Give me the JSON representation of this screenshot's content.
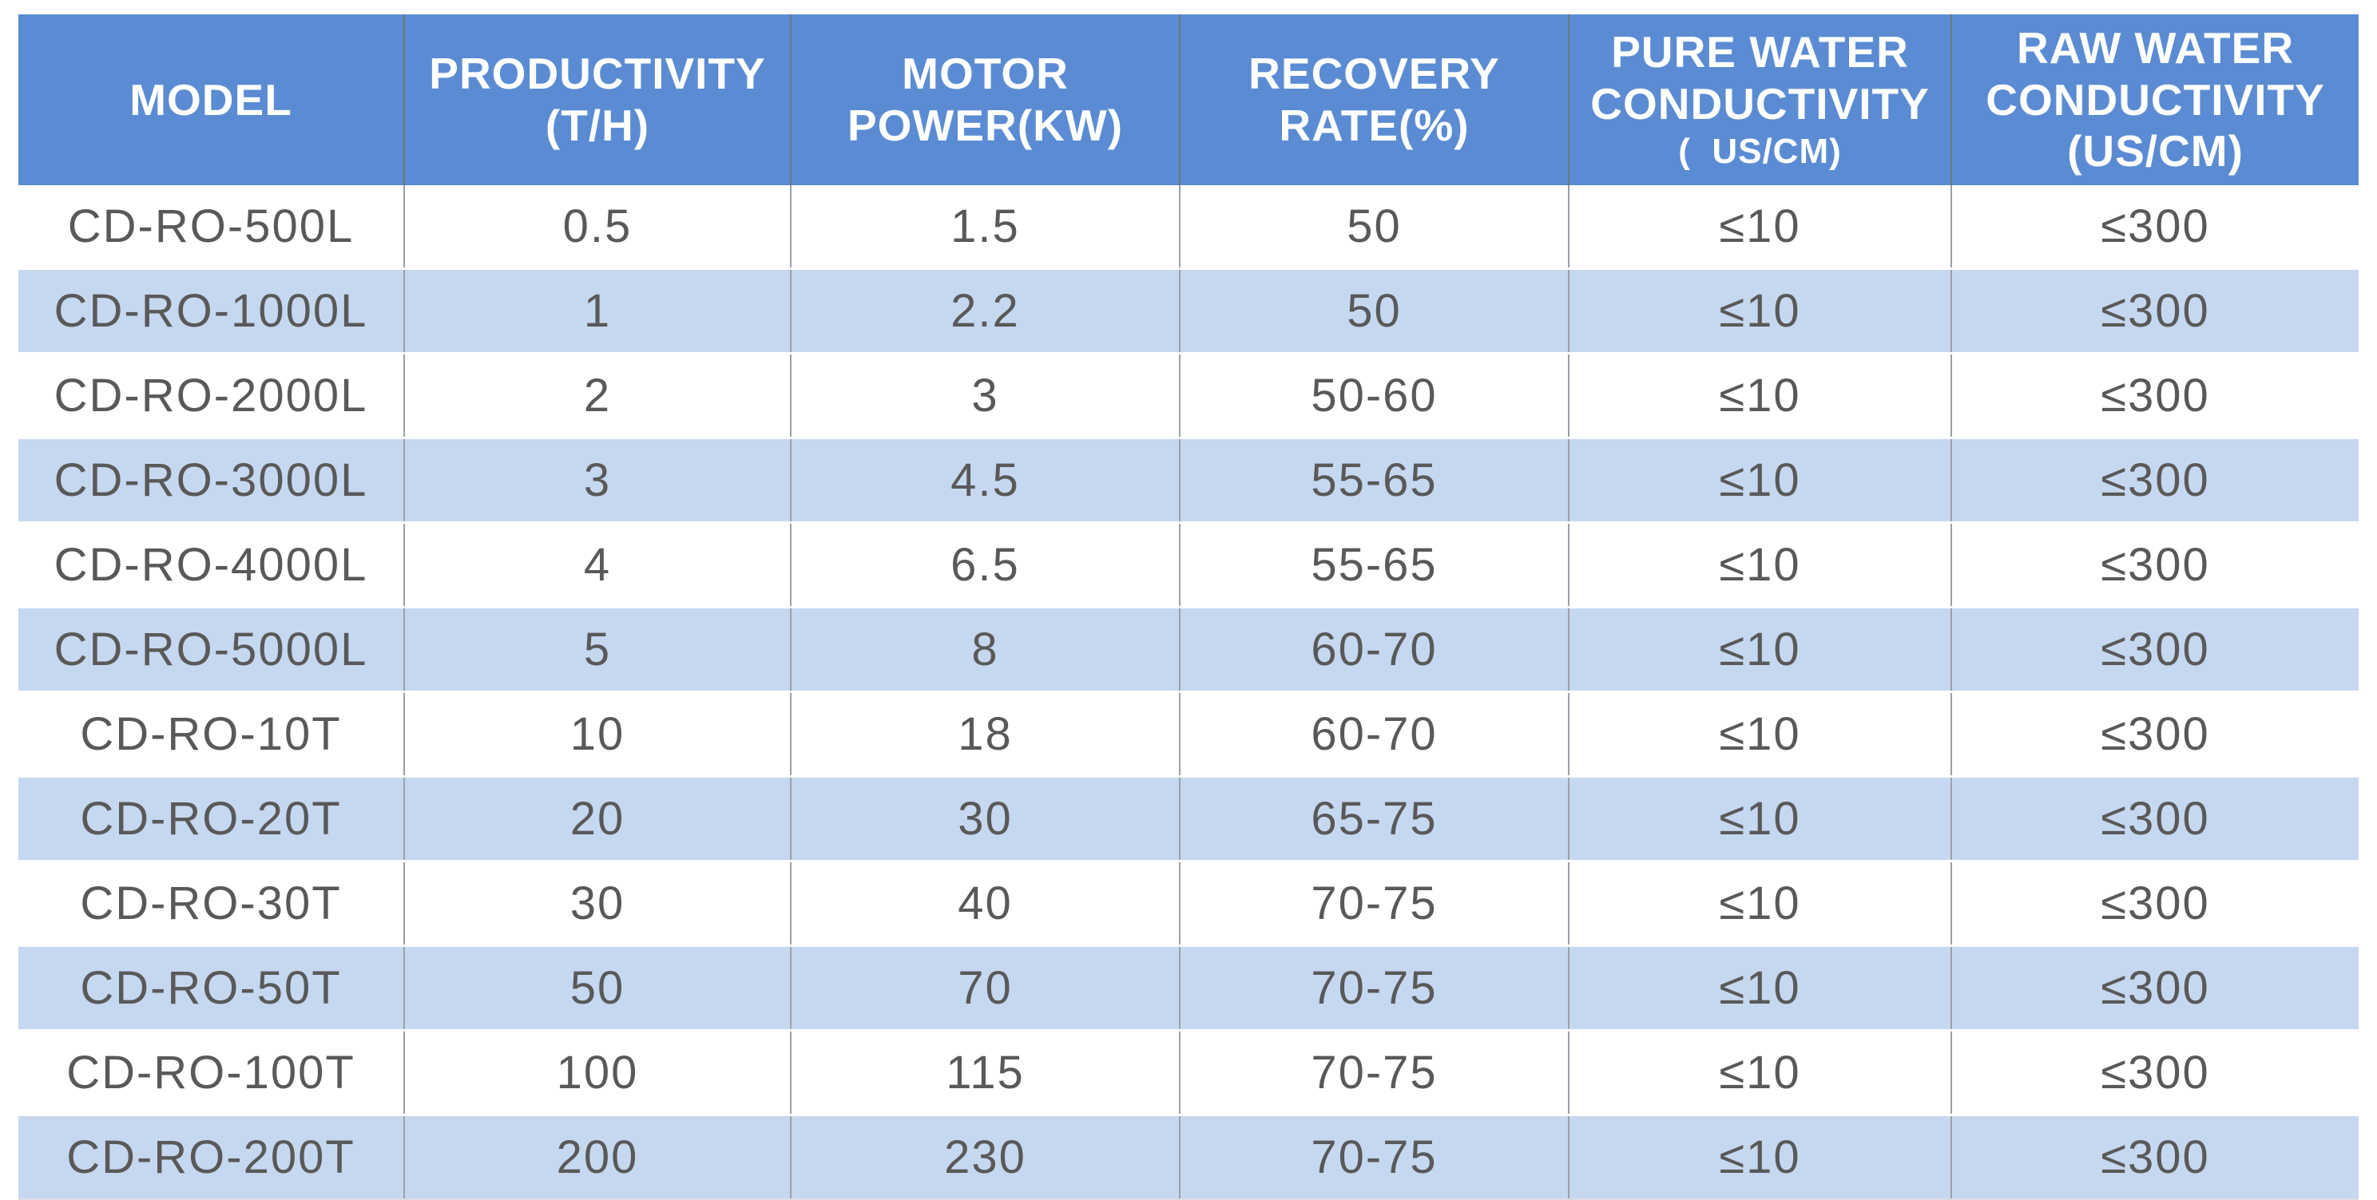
{
  "table": {
    "columns": [
      {
        "id": "model",
        "lines": [
          "MODEL"
        ]
      },
      {
        "id": "productivity",
        "lines": [
          "PRODUCTIVITY",
          "(T/H)"
        ]
      },
      {
        "id": "motor-power",
        "lines": [
          "MOTOR",
          "POWER(KW)"
        ]
      },
      {
        "id": "recovery-rate",
        "lines": [
          "RECOVERY",
          "RATE(%)"
        ]
      },
      {
        "id": "pure-water-conductivity",
        "lines": [
          "PURE WATER",
          "CONDUCTIVITY"
        ],
        "sub": "(  US/CM)"
      },
      {
        "id": "raw-water-conductivity",
        "lines": [
          "RAW WATER",
          "CONDUCTIVITY",
          "(US/CM)"
        ]
      }
    ],
    "rows": [
      [
        "CD-RO-500L",
        "0.5",
        "1.5",
        "50",
        "≤10",
        "≤300"
      ],
      [
        "CD-RO-1000L",
        "1",
        "2.2",
        "50",
        "≤10",
        "≤300"
      ],
      [
        "CD-RO-2000L",
        "2",
        "3",
        "50-60",
        "≤10",
        "≤300"
      ],
      [
        "CD-RO-3000L",
        "3",
        "4.5",
        "55-65",
        "≤10",
        "≤300"
      ],
      [
        "CD-RO-4000L",
        "4",
        "6.5",
        "55-65",
        "≤10",
        "≤300"
      ],
      [
        "CD-RO-5000L",
        "5",
        "8",
        "60-70",
        "≤10",
        "≤300"
      ],
      [
        "CD-RO-10T",
        "10",
        "18",
        "60-70",
        "≤10",
        "≤300"
      ],
      [
        "CD-RO-20T",
        "20",
        "30",
        "65-75",
        "≤10",
        "≤300"
      ],
      [
        "CD-RO-30T",
        "30",
        "40",
        "70-75",
        "≤10",
        "≤300"
      ],
      [
        "CD-RO-50T",
        "50",
        "70",
        "70-75",
        "≤10",
        "≤300"
      ],
      [
        "CD-RO-100T",
        "100",
        "115",
        "70-75",
        "≤10",
        "≤300"
      ],
      [
        "CD-RO-200T",
        "200",
        "230",
        "70-75",
        "≤10",
        "≤300"
      ]
    ]
  },
  "colors": {
    "header_bg": "#5b8cd3",
    "header_text": "#ffffff",
    "row_bg": "#ffffff",
    "row_alt_bg": "#c6d8f0",
    "body_text": "#595959",
    "divider_header": "#70757a",
    "divider_body": "#9aa0a6"
  }
}
